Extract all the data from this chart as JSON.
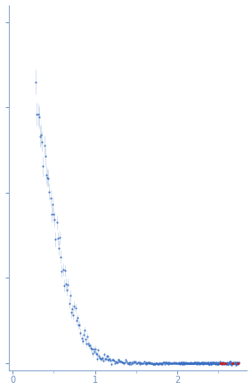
{
  "title": "",
  "xlabel": "",
  "ylabel": "",
  "xlim": [
    -0.05,
    2.85
  ],
  "ylim": [
    -0.02,
    1.05
  ],
  "x_ticks": [
    0,
    1,
    2
  ],
  "background_color": "#ffffff",
  "point_color_blue": "#3a6fc4",
  "point_color_red": "#cc2222",
  "error_color": "#b8cce4",
  "tick_color": "#7090c0",
  "spine_color": "#8aaad0",
  "seed": 7
}
